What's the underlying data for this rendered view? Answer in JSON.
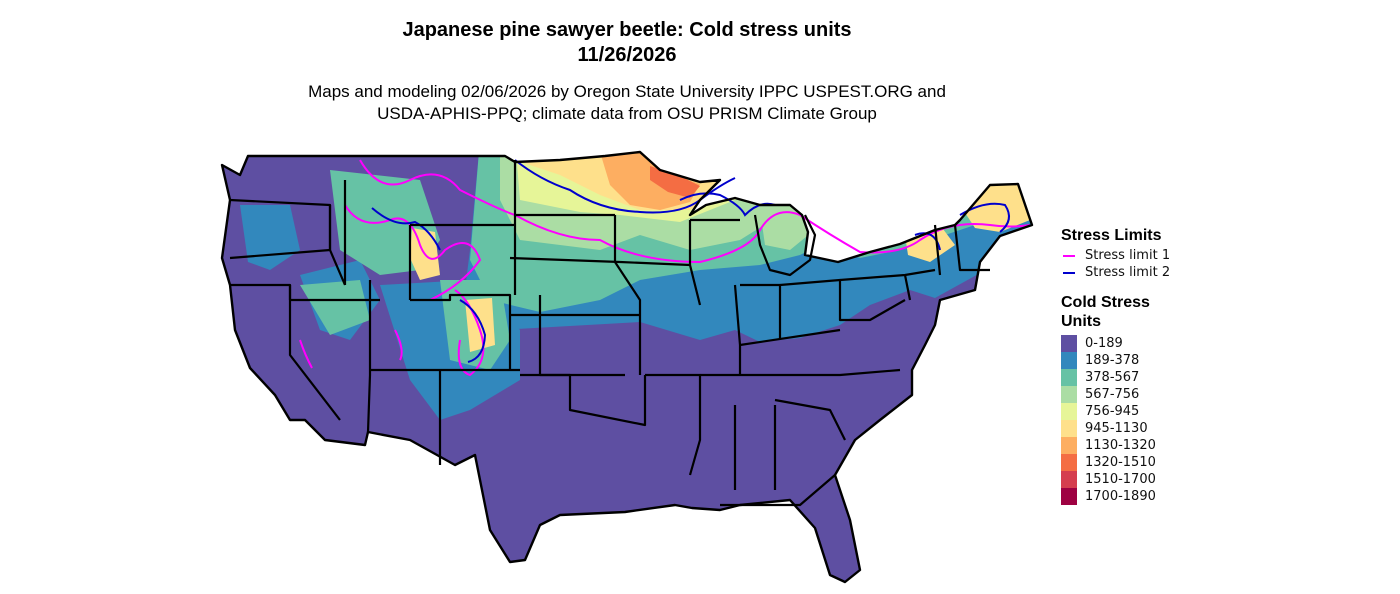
{
  "title": {
    "line1": "Japanese pine sawyer beetle: Cold stress units",
    "line2": "11/26/2026"
  },
  "subtitle": {
    "line1": "Maps and modeling 02/06/2026 by Oregon State University IPPC USPEST.ORG and",
    "line2": "USDA-APHIS-PPQ; climate data from OSU PRISM Climate Group"
  },
  "legend": {
    "stress_limits_title": "Stress Limits",
    "stress_limits": [
      {
        "label": "Stress limit 1",
        "color": "#ff00ff"
      },
      {
        "label": "Stress limit 2",
        "color": "#0000cd"
      }
    ],
    "cold_stress_title": "Cold Stress Units",
    "bins": [
      {
        "label": "0-189",
        "color": "#5e4fa2"
      },
      {
        "label": "189-378",
        "color": "#3288bd"
      },
      {
        "label": "378-567",
        "color": "#66c2a5"
      },
      {
        "label": "567-756",
        "color": "#abdda4"
      },
      {
        "label": "756-945",
        "color": "#e6f598"
      },
      {
        "label": "945-1130",
        "color": "#fee08b"
      },
      {
        "label": "1130-1320",
        "color": "#fdae61"
      },
      {
        "label": "1320-1510",
        "color": "#f46d43"
      },
      {
        "label": "1510-1700",
        "color": "#d53e4f"
      },
      {
        "label": "1700-1890",
        "color": "#9e0142"
      }
    ]
  },
  "map": {
    "region": "Contiguous United States",
    "border_color": "#000000"
  }
}
